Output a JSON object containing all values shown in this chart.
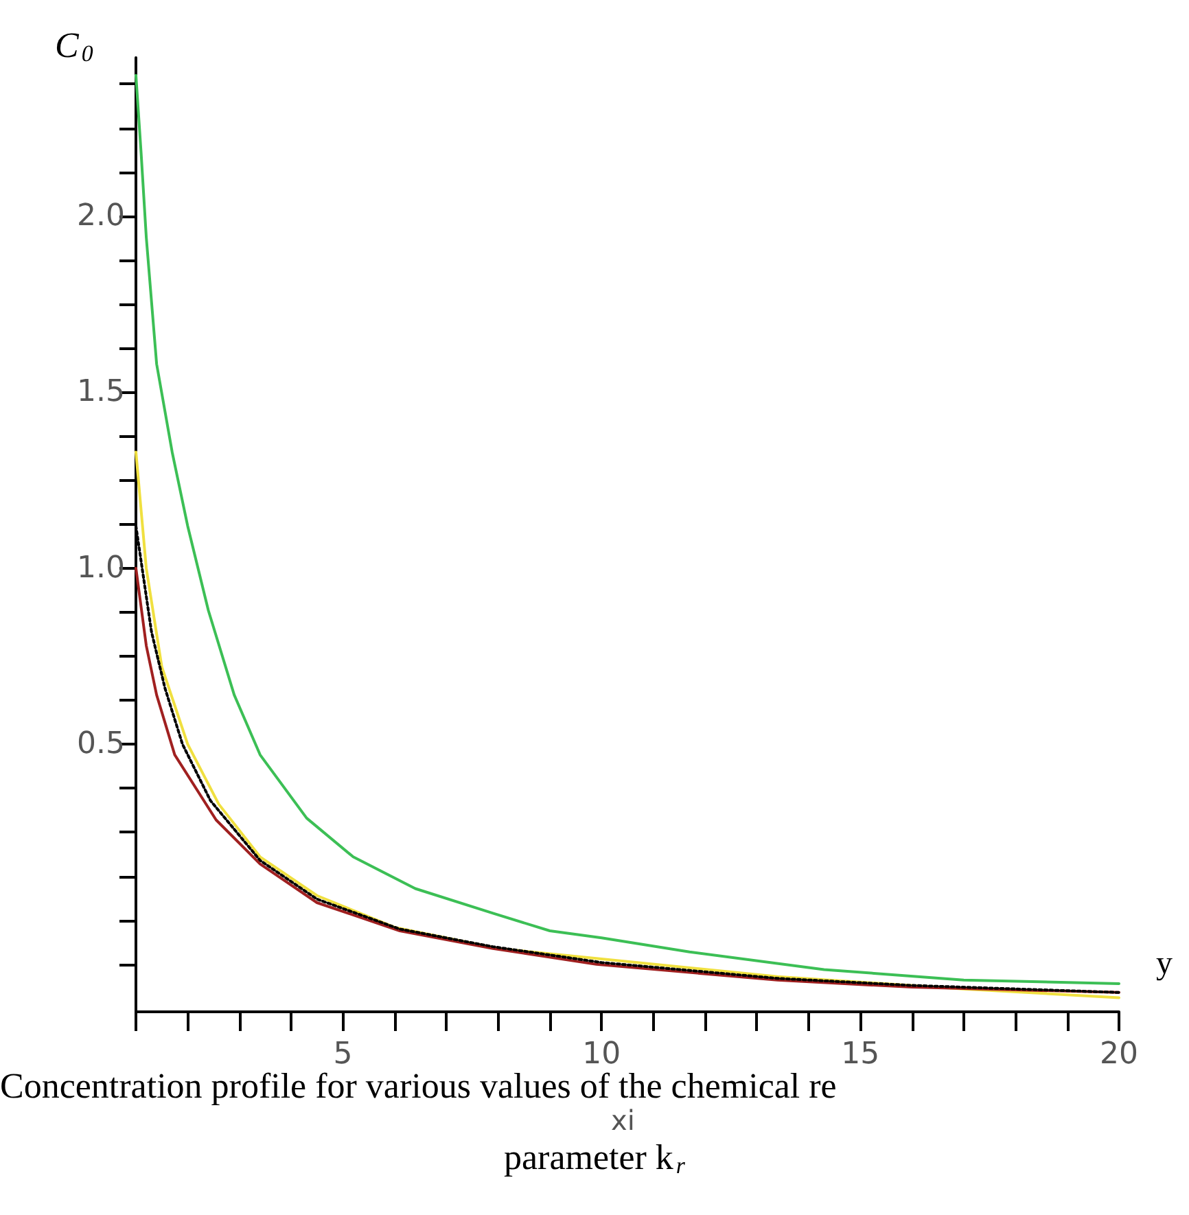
{
  "chart_data": {
    "type": "line",
    "ylabel": "C$_{0}$",
    "xlabel": "xi",
    "annotations": [
      "y",
      "Concentration profile for various values of the chemical re",
      "parameter k$_{r}$"
    ],
    "xlim": [
      1,
      20
    ],
    "xticks": [
      {
        "value": 1,
        "label": null
      },
      {
        "value": 2,
        "label": null
      },
      {
        "value": 3,
        "label": null
      },
      {
        "value": 4,
        "label": null
      },
      5,
      {
        "value": 6,
        "label": null
      },
      {
        "value": 7,
        "label": null
      },
      {
        "value": 8,
        "label": null
      },
      {
        "value": 9,
        "label": null
      },
      10,
      {
        "value": 11,
        "label": null
      },
      {
        "value": 12,
        "label": null
      },
      {
        "value": 13,
        "label": null
      },
      {
        "value": 14,
        "label": null
      },
      15,
      {
        "value": 16,
        "label": null
      },
      {
        "value": 17,
        "label": null
      },
      {
        "value": 18,
        "label": null
      },
      {
        "value": 19,
        "label": null
      },
      20
    ],
    "ylim": [
      -0.26,
      2.45
    ],
    "yticks": [
      {
        "value": -0.125,
        "label": null
      },
      {
        "value": 0,
        "label": null
      },
      {
        "value": 0.125,
        "label": null
      },
      {
        "value": 0.25,
        "label": null
      },
      {
        "value": 0.375,
        "label": null
      },
      {
        "value": 0.5,
        "label": "0.5"
      },
      {
        "value": 0.625,
        "label": null
      },
      {
        "value": 0.75,
        "label": null
      },
      {
        "value": 0.875,
        "label": null
      },
      {
        "value": 1,
        "label": "1.0"
      },
      {
        "value": 1.125,
        "label": null
      },
      {
        "value": 1.25,
        "label": null
      },
      {
        "value": 1.375,
        "label": null
      },
      {
        "value": 1.5,
        "label": "1.5"
      },
      {
        "value": 1.625,
        "label": null
      },
      {
        "value": 1.75,
        "label": null
      },
      {
        "value": 1.875,
        "label": null
      },
      {
        "value": 2,
        "label": "2.0"
      },
      {
        "value": 2.125,
        "label": null
      },
      {
        "value": 2.25,
        "label": null
      },
      {
        "value": 2.375,
        "label": null
      }
    ],
    "grid": false,
    "marker": "none",
    "series": [
      {
        "color": "#3cbf55",
        "line_style": "solid",
        "x": [
          1,
          1.1,
          1.2,
          1.4,
          1.7,
          2.0,
          2.4,
          2.9,
          3.4,
          4.3,
          5.2,
          6.4,
          7.9,
          9,
          10,
          11.7,
          14.3,
          17,
          20
        ],
        "values": [
          2.4,
          2.18,
          1.94,
          1.58,
          1.33,
          1.12,
          0.88,
          0.64,
          0.47,
          0.29,
          0.18,
          0.09,
          0.02,
          -0.03,
          -0.05,
          -0.09,
          -0.14,
          -0.17,
          -0.18
        ]
      },
      {
        "color": "#f0e040",
        "line_style": "solid",
        "x": [
          1,
          1.2,
          1.5,
          2,
          2.6,
          3.4,
          4.5,
          6,
          8,
          10,
          13.4,
          17,
          20
        ],
        "values": [
          1.33,
          1.0,
          0.72,
          0.5,
          0.33,
          0.18,
          0.07,
          -0.02,
          -0.08,
          -0.11,
          -0.16,
          -0.195,
          -0.22
        ]
      },
      {
        "color": "#a02020",
        "line_style": "solid",
        "x": [
          1,
          1.2,
          1.4,
          1.75,
          2.55,
          3.4,
          4.5,
          6.1,
          7.9,
          9.9,
          13.4,
          16,
          20
        ],
        "values": [
          1.0,
          0.78,
          0.64,
          0.47,
          0.285,
          0.16,
          0.05,
          -0.03,
          -0.08,
          -0.125,
          -0.17,
          -0.19,
          -0.205
        ]
      },
      {
        "color": "#000000",
        "line_style": "dotted",
        "x": [
          1,
          1.3,
          1.56,
          1.9,
          2.44,
          3.4,
          4.5,
          6.1,
          7.9,
          10,
          13.4,
          16,
          20
        ],
        "values": [
          1.12,
          0.82,
          0.66,
          0.5,
          0.34,
          0.17,
          0.06,
          -0.025,
          -0.075,
          -0.12,
          -0.165,
          -0.185,
          -0.205
        ]
      }
    ]
  }
}
